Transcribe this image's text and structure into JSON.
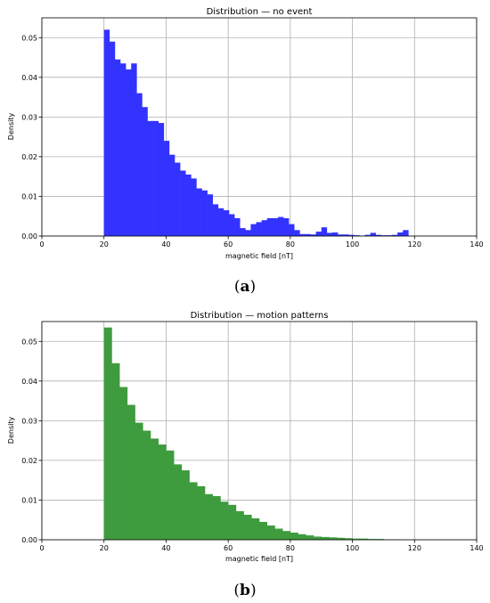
{
  "chart_data": [
    {
      "type": "bar",
      "title": "Distribution — no event",
      "xlabel": "magnetic field [nT]",
      "ylabel": "Density",
      "xlim": [
        0,
        140
      ],
      "ylim": [
        0,
        0.055
      ],
      "xticks": [
        "0",
        "20",
        "40",
        "60",
        "80",
        "100",
        "120",
        "140"
      ],
      "yticks": [
        "0.00",
        "0.01",
        "0.02",
        "0.03",
        "0.04",
        "0.05"
      ],
      "grid": true,
      "color": "#3333ff",
      "bin_width": 1.75,
      "bin_start": 20,
      "values": [
        0.052,
        0.049,
        0.0445,
        0.0435,
        0.042,
        0.0435,
        0.036,
        0.0325,
        0.029,
        0.029,
        0.0285,
        0.024,
        0.0205,
        0.0185,
        0.0165,
        0.0155,
        0.0145,
        0.012,
        0.0115,
        0.0105,
        0.008,
        0.007,
        0.0065,
        0.0055,
        0.0045,
        0.002,
        0.0015,
        0.003,
        0.0035,
        0.004,
        0.0045,
        0.0045,
        0.0048,
        0.0045,
        0.003,
        0.0015,
        0.0005,
        0.0005,
        0.0004,
        0.0011,
        0.0022,
        0.0008,
        0.0009,
        0.0004,
        0.0004,
        0.0003,
        0.0002,
        0.0001,
        0.0003,
        0.0008,
        0.0003,
        0.0002,
        0.0002,
        0.0003,
        0.0009,
        0.0015
      ],
      "caption": "(a)",
      "caption_letter": "a"
    },
    {
      "type": "bar",
      "title": "Distribution — motion patterns",
      "xlabel": "magnetic field [nT]",
      "ylabel": "Density",
      "xlim": [
        0,
        140
      ],
      "ylim": [
        0,
        0.055
      ],
      "xticks": [
        "0",
        "20",
        "40",
        "60",
        "80",
        "100",
        "120",
        "140"
      ],
      "yticks": [
        "0.00",
        "0.01",
        "0.02",
        "0.03",
        "0.04",
        "0.05"
      ],
      "grid": true,
      "color": "#3e9b3e",
      "bin_width": 2.5,
      "bin_start": 20,
      "values": [
        0.0535,
        0.0445,
        0.0385,
        0.034,
        0.0295,
        0.0275,
        0.0255,
        0.024,
        0.0225,
        0.019,
        0.0175,
        0.0145,
        0.0135,
        0.0115,
        0.011,
        0.0096,
        0.0088,
        0.0072,
        0.0063,
        0.0054,
        0.0045,
        0.0036,
        0.0028,
        0.0022,
        0.0018,
        0.0014,
        0.0011,
        0.0008,
        0.0007,
        0.0006,
        0.0005,
        0.0004,
        0.0003,
        0.0003,
        0.0002,
        0.0002,
        0.0001,
        0.0001
      ],
      "caption": "(b)",
      "caption_letter": "b"
    }
  ]
}
